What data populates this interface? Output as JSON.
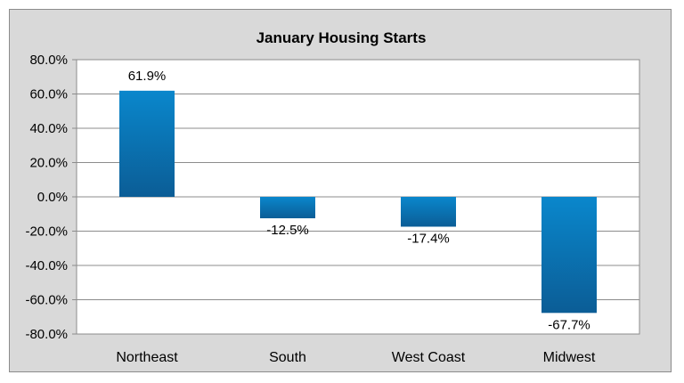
{
  "chart_data": {
    "type": "bar",
    "title": "January Housing Starts",
    "categories": [
      "Northeast",
      "South",
      "West Coast",
      "Midwest"
    ],
    "values": [
      61.9,
      -12.5,
      -17.4,
      -67.7
    ],
    "data_labels": [
      "61.9%",
      "-12.5%",
      "-17.4%",
      "-67.7%"
    ],
    "ylim": [
      -80,
      80
    ],
    "yticks": [
      80,
      60,
      40,
      20,
      0,
      -20,
      -40,
      -60,
      -80
    ],
    "ytick_labels": [
      "80.0%",
      "60.0%",
      "40.0%",
      "20.0%",
      "0.0%",
      "-20.0%",
      "-40.0%",
      "-60.0%",
      "-80.0%"
    ],
    "xlabel": "",
    "ylabel": "",
    "grid": true,
    "legend": "none",
    "colors": {
      "bar_top": "#0a87cc",
      "bar_bottom": "#0b5d96",
      "frame_bg": "#d9d9d9",
      "plot_bg": "#ffffff",
      "grid": "#8c8c8c"
    }
  }
}
